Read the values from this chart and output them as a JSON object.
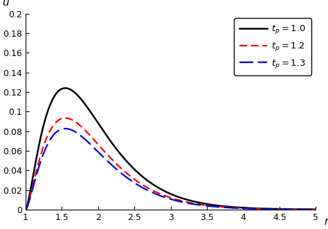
{
  "title": "",
  "xlabel": "r",
  "ylabel": "u",
  "xlim": [
    1.0,
    5.0
  ],
  "ylim": [
    0.0,
    0.2
  ],
  "xticks": [
    1.0,
    1.5,
    2.0,
    2.5,
    3.0,
    3.5,
    4.0,
    4.5,
    5.0
  ],
  "yticks": [
    0.0,
    0.02,
    0.04,
    0.06,
    0.08,
    0.1,
    0.12,
    0.14,
    0.16,
    0.18,
    0.2
  ],
  "lines": [
    {
      "label": "$t_p =1.0$",
      "color": "#000000",
      "linestyle": "solid",
      "linewidth": 1.8,
      "A": 1.38,
      "k": 2.75,
      "alpha": 1.5
    },
    {
      "label": "$t_p =1.2$",
      "color": "#ff0000",
      "linestyle": "dashed",
      "linewidth": 1.6,
      "dashes": [
        5,
        2.5
      ],
      "A": 1.04,
      "k": 2.75,
      "alpha": 1.5
    },
    {
      "label": "$t_p =1.3$",
      "color": "#0000cc",
      "linestyle": "dashed",
      "linewidth": 1.6,
      "dashes": [
        9,
        3
      ],
      "A": 0.92,
      "k": 2.75,
      "alpha": 1.5
    }
  ],
  "legend_loc": "upper right",
  "background_color": "#ffffff",
  "r_start": 1.0,
  "r_end": 5.0,
  "n_points": 2000
}
